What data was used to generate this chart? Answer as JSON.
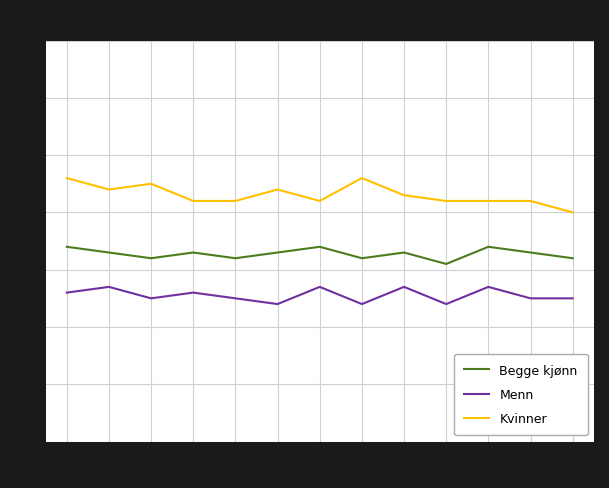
{
  "years": [
    2003,
    2004,
    2005,
    2006,
    2007,
    2008,
    2009,
    2010,
    2011,
    2012,
    2013,
    2014,
    2015
  ],
  "begge_kjonn": [
    42,
    41.5,
    41,
    41.5,
    41,
    41.5,
    42,
    41,
    41.5,
    40.5,
    42,
    41.5,
    41
  ],
  "menn": [
    38,
    38.5,
    37.5,
    38,
    37.5,
    37,
    38.5,
    37,
    38.5,
    37,
    38.5,
    37.5,
    37.5
  ],
  "kvinner": [
    48,
    47,
    47.5,
    46,
    46,
    47,
    46,
    48,
    46.5,
    46,
    46,
    46,
    45
  ],
  "colors": {
    "begge_kjonn": "#4d7c1e",
    "menn": "#7030a0",
    "kvinner": "#ffc000"
  },
  "legend_labels": [
    "Begge kjønn",
    "Menn",
    "Kvinner"
  ],
  "ylim": [
    25,
    60
  ],
  "yticks": [
    25,
    30,
    35,
    40,
    45,
    50,
    55,
    60
  ],
  "xlim": [
    2003,
    2015
  ],
  "xticks": [
    2003,
    2004,
    2005,
    2006,
    2007,
    2008,
    2009,
    2010,
    2011,
    2012,
    2013,
    2014,
    2015
  ],
  "background_color": "#ffffff",
  "outer_background": "#1a1a1a",
  "linewidth": 1.5,
  "grid_color": "#d0d0d0",
  "legend_loc": "lower right"
}
